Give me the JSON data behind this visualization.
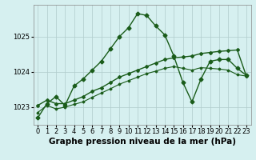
{
  "title": "Graphe pression niveau de la mer (hPa)",
  "background_color": "#d6f0f0",
  "grid_color": "#b0cccc",
  "line_color": "#1a5c1a",
  "x_labels": [
    "0",
    "1",
    "2",
    "3",
    "4",
    "5",
    "6",
    "7",
    "8",
    "9",
    "10",
    "11",
    "12",
    "13",
    "14",
    "15",
    "16",
    "17",
    "18",
    "19",
    "20",
    "21",
    "22",
    "23"
  ],
  "ylim": [
    1022.5,
    1025.9
  ],
  "yticks": [
    1023,
    1024,
    1025
  ],
  "series": [
    [
      1022.7,
      1023.1,
      1023.3,
      1023.05,
      1023.6,
      1023.8,
      1024.05,
      1024.3,
      1024.65,
      1025.0,
      1025.25,
      1025.65,
      1025.6,
      1025.3,
      1025.05,
      1024.45,
      1023.7,
      1023.15,
      1023.8,
      1024.3,
      1024.35,
      1024.35,
      1024.1,
      1023.9
    ],
    [
      1023.05,
      1023.2,
      1023.1,
      1023.1,
      1023.2,
      1023.3,
      1023.45,
      1023.55,
      1023.7,
      1023.85,
      1023.95,
      1024.05,
      1024.15,
      1024.25,
      1024.35,
      1024.4,
      1024.42,
      1024.45,
      1024.52,
      1024.55,
      1024.58,
      1024.6,
      1024.62,
      1023.88
    ],
    [
      1022.85,
      1023.05,
      1022.95,
      1023.0,
      1023.08,
      1023.15,
      1023.28,
      1023.4,
      1023.52,
      1023.65,
      1023.75,
      1023.85,
      1023.95,
      1024.02,
      1024.1,
      1024.15,
      1024.1,
      1024.05,
      1024.12,
      1024.1,
      1024.08,
      1024.05,
      1023.92,
      1023.88
    ]
  ],
  "title_fontsize": 7.5,
  "tick_fontsize": 6.0
}
